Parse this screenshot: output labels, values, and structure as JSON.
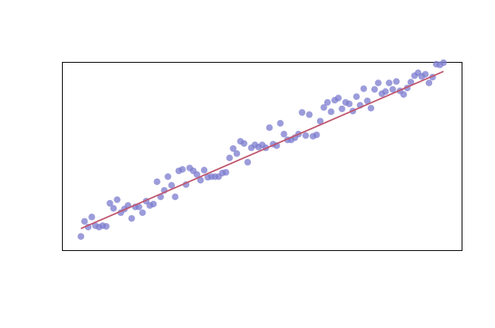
{
  "chart_data": {
    "type": "scatter",
    "title": "",
    "xlabel": "",
    "ylabel": "",
    "xlim": [
      -5,
      105
    ],
    "ylim": [
      -0.1,
      2.5
    ],
    "grid": false,
    "legend": "none",
    "colors": {
      "points": "#7b7bcf",
      "fit_line": "#c0566e",
      "frame": "#000000"
    },
    "series": [
      {
        "kind": "points",
        "x": [
          0,
          1,
          2,
          3,
          4,
          5,
          6,
          7,
          8,
          9,
          10,
          11,
          12,
          13,
          14,
          15,
          16,
          17,
          18,
          19,
          20,
          21,
          22,
          23,
          24,
          25,
          26,
          27,
          28,
          29,
          30,
          31,
          32,
          33,
          34,
          35,
          36,
          37,
          38,
          39,
          40,
          41,
          42,
          43,
          44,
          45,
          46,
          47,
          48,
          49,
          50,
          51,
          52,
          53,
          54,
          55,
          56,
          57,
          58,
          59,
          60,
          61,
          62,
          63,
          64,
          65,
          66,
          67,
          68,
          69,
          70,
          71,
          72,
          73,
          74,
          75,
          76,
          77,
          78,
          79,
          80,
          81,
          82,
          83,
          84,
          85,
          86,
          87,
          88,
          89,
          90,
          91,
          92,
          93,
          94,
          95,
          96,
          97,
          98,
          99,
          100
        ],
        "y": [
          0.09,
          0.3,
          0.22,
          0.36,
          0.24,
          0.22,
          0.24,
          0.23,
          0.55,
          0.48,
          0.6,
          0.42,
          0.47,
          0.52,
          0.34,
          0.5,
          0.5,
          0.42,
          0.58,
          0.52,
          0.54,
          0.85,
          0.64,
          0.73,
          0.92,
          0.8,
          0.64,
          1.0,
          1.02,
          0.81,
          1.04,
          1.0,
          0.95,
          0.87,
          1.01,
          0.91,
          0.92,
          0.92,
          0.92,
          0.97,
          0.98,
          1.18,
          1.31,
          1.24,
          1.41,
          1.38,
          1.12,
          1.32,
          1.36,
          1.33,
          1.36,
          1.32,
          1.6,
          1.37,
          1.35,
          1.66,
          1.51,
          1.43,
          1.43,
          1.46,
          1.51,
          1.81,
          1.49,
          1.78,
          1.48,
          1.5,
          1.69,
          1.88,
          1.95,
          1.82,
          1.98,
          2.01,
          1.86,
          1.95,
          1.93,
          1.83,
          2.03,
          1.91,
          2.14,
          1.97,
          1.87,
          2.13,
          2.22,
          2.07,
          2.1,
          2.22,
          2.13,
          2.24,
          2.11,
          2.06,
          2.15,
          2.23,
          2.32,
          2.36,
          2.31,
          2.34,
          2.22,
          2.3,
          2.48,
          2.47,
          2.5
        ]
      },
      {
        "kind": "line",
        "x": [
          0,
          100
        ],
        "y": [
          0.2,
          2.38
        ]
      }
    ]
  }
}
